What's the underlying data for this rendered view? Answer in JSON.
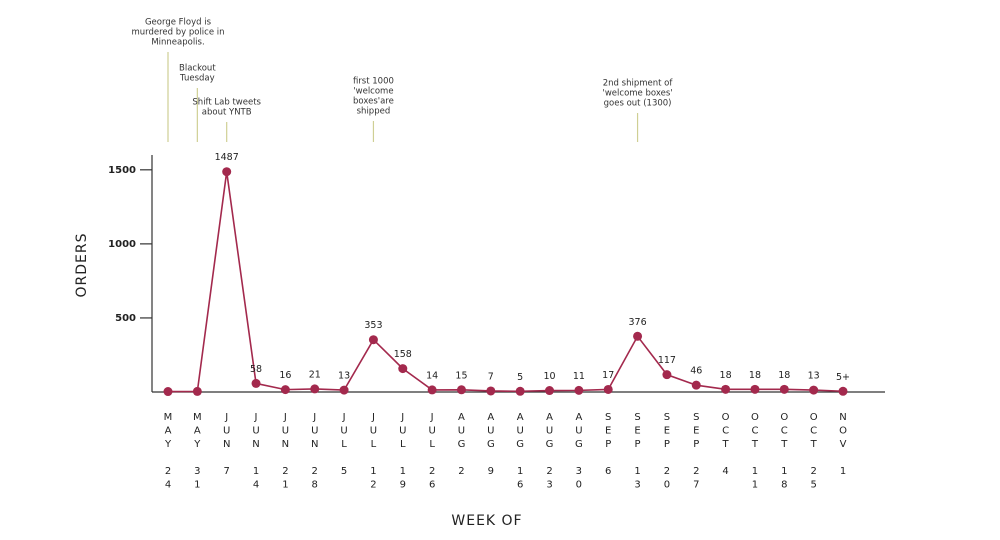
{
  "chart_data": {
    "type": "line",
    "ylabel": "ORDERS",
    "xlabel": "WEEK OF",
    "color": "#a3294d",
    "annotation_color": "#cfcf94",
    "categories": [
      "MAY 24",
      "MAY 31",
      "JUN 7",
      "JUN 14",
      "JUN 21",
      "JUN 28",
      "JUL 5",
      "JUL 12",
      "JUL 19",
      "JUL 26",
      "AUG 2",
      "AUG 9",
      "AUG 16",
      "AUG 23",
      "AUG 30",
      "SEP 6",
      "SEP 13",
      "SEP 20",
      "SEP 27",
      "OCT 4",
      "OCT 11",
      "OCT 18",
      "OCT 25",
      "NOV 1"
    ],
    "values": [
      3,
      4,
      1487,
      58,
      16,
      21,
      13,
      353,
      158,
      14,
      15,
      7,
      5,
      10,
      11,
      17,
      376,
      117,
      46,
      18,
      18,
      18,
      13,
      5
    ],
    "value_labels": [
      null,
      null,
      "1487",
      "58",
      "16",
      "21",
      "13",
      "353",
      "158",
      "14",
      "15",
      "7",
      "5",
      "10",
      "11",
      "17",
      "376",
      "117",
      "46",
      "18",
      "18",
      "18",
      "13",
      "5+"
    ],
    "ylim": [
      0,
      1600
    ],
    "yticks": [
      500,
      1000,
      1500
    ],
    "annotations": [
      {
        "category": "MAY 24",
        "lines": [
          "George Floyd is",
          "murdered by police in",
          "Minneapolis."
        ]
      },
      {
        "category": "MAY 31",
        "lines": [
          "Blackout",
          "Tuesday"
        ]
      },
      {
        "category": "JUN 7",
        "lines": [
          "Shift Lab tweets",
          "about YNTB"
        ]
      },
      {
        "category": "JUL 12",
        "lines": [
          "first 1000",
          "'welcome",
          "boxes'are",
          "shipped"
        ]
      },
      {
        "category": "SEP 13",
        "lines": [
          "2nd shipment of",
          "'welcome boxes'",
          "goes out (1300)"
        ]
      }
    ]
  }
}
